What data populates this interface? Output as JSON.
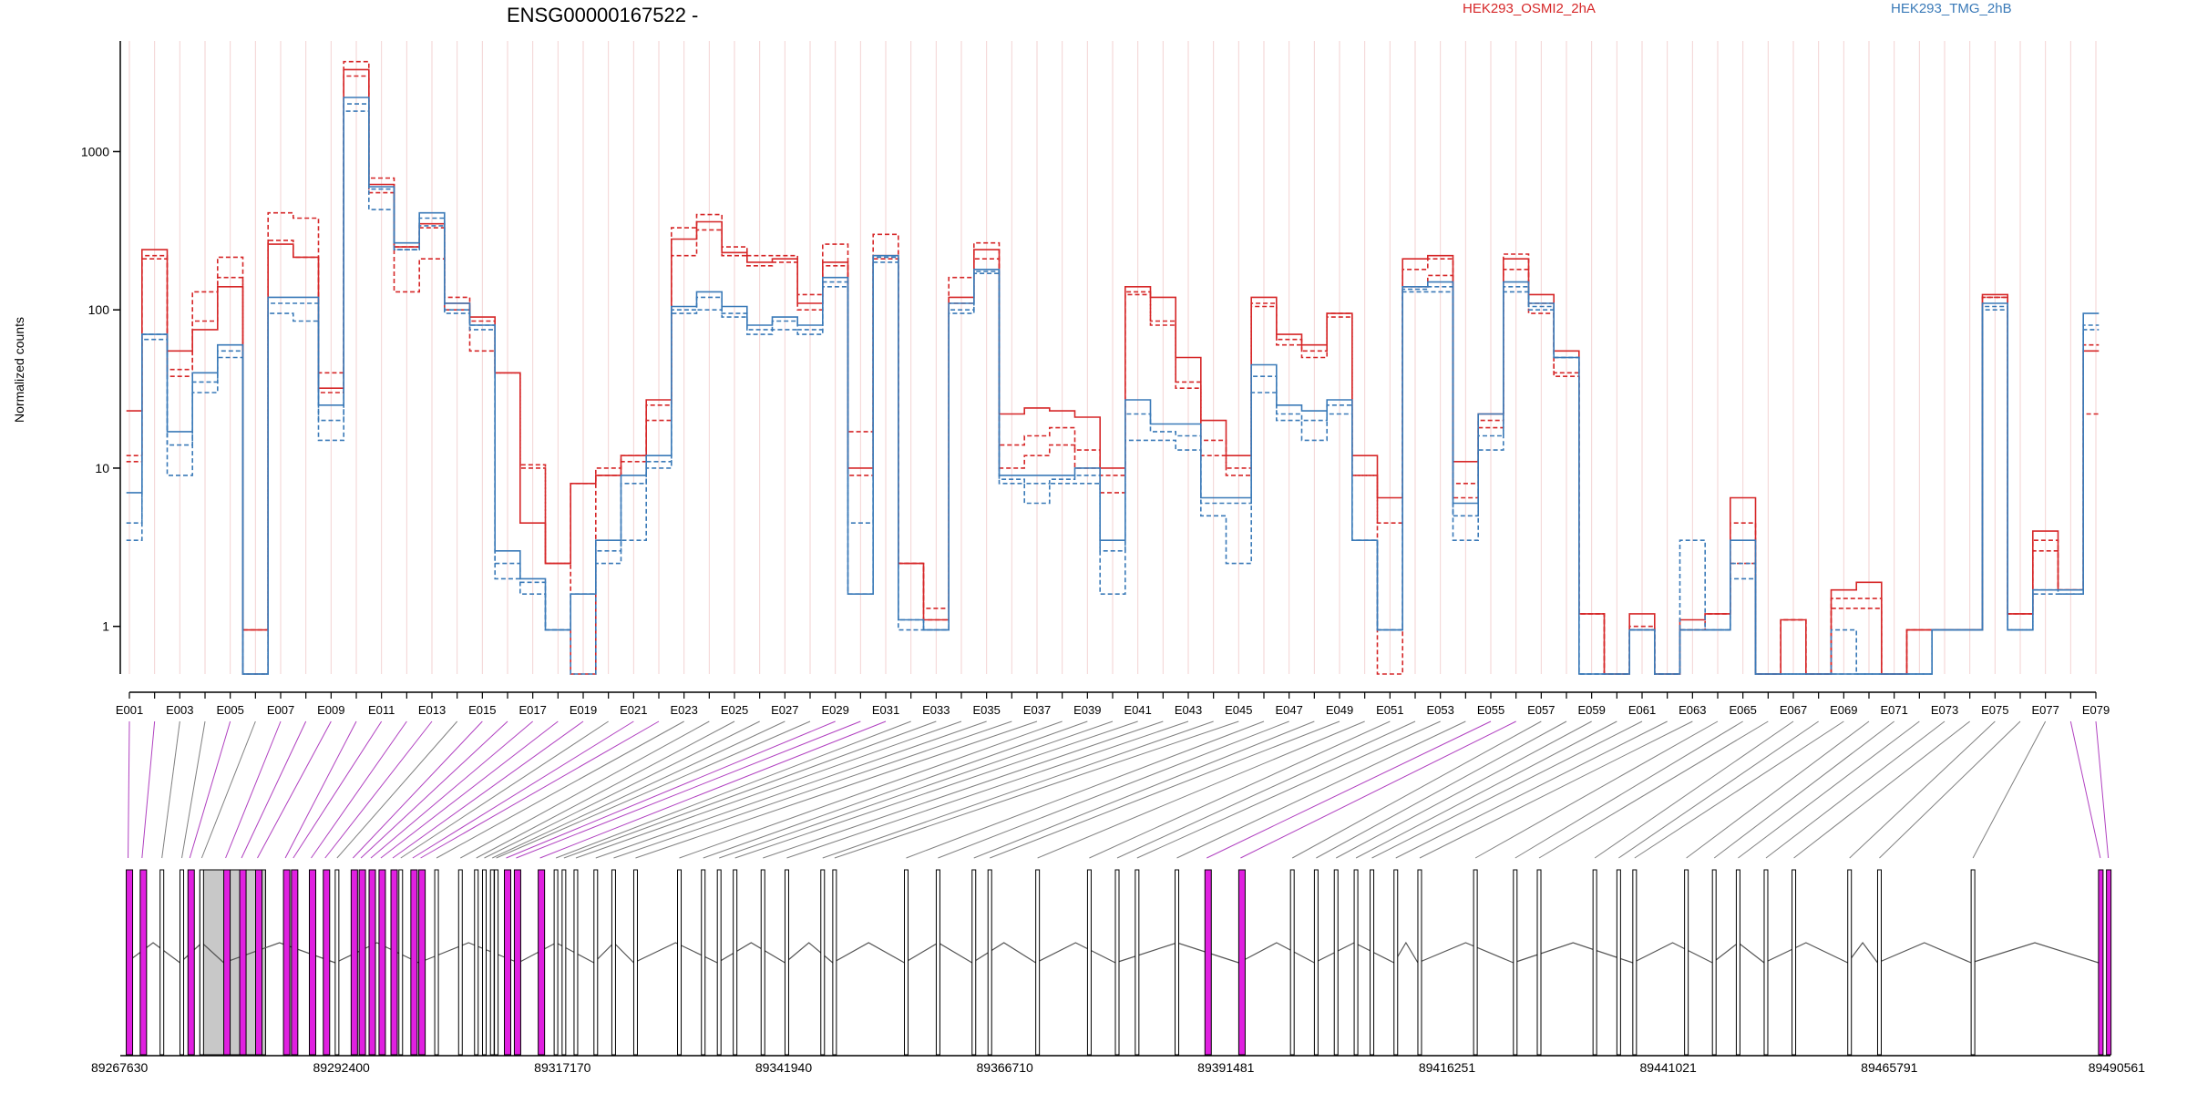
{
  "chart_data": {
    "type": "line",
    "title": "ENSG00000167522 -",
    "ylabel": "Normalized counts",
    "xlabel": "",
    "y_scale": "log",
    "ylim": [
      0.5,
      5000
    ],
    "y_ticks": [
      1,
      10,
      100,
      1000
    ],
    "y_tick_labels": [
      "1",
      "10",
      "100",
      "1000"
    ],
    "categories": [
      "E001",
      "E002",
      "E003",
      "E004",
      "E005",
      "E006",
      "E007",
      "E008",
      "E009",
      "E010",
      "E011",
      "E012",
      "E013",
      "E014",
      "E015",
      "E016",
      "E017",
      "E018",
      "E019",
      "E020",
      "E021",
      "E022",
      "E023",
      "E024",
      "E025",
      "E026",
      "E027",
      "E028",
      "E029",
      "E030",
      "E031",
      "E032",
      "E033",
      "E034",
      "E035",
      "E036",
      "E037",
      "E038",
      "E039",
      "E040",
      "E041",
      "E042",
      "E043",
      "E044",
      "E045",
      "E046",
      "E047",
      "E048",
      "E049",
      "E050",
      "E051",
      "E052",
      "E053",
      "E054",
      "E055",
      "E056",
      "E057",
      "E058",
      "E059",
      "E060",
      "E061",
      "E062",
      "E063",
      "E064",
      "E065",
      "E066",
      "E067",
      "E068",
      "E069",
      "E070",
      "E071",
      "E072",
      "E073",
      "E074",
      "E075",
      "E076",
      "E077",
      "E078",
      "E079"
    ],
    "category_labels": [
      "E001",
      "E003",
      "E005",
      "E007",
      "E009",
      "E011",
      "E013",
      "E015",
      "E017",
      "E019",
      "E021",
      "E023",
      "E025",
      "E027",
      "E029",
      "E031",
      "E033",
      "E035",
      "E037",
      "E039",
      "E041",
      "E043",
      "E045",
      "E047",
      "E049",
      "E051",
      "E053",
      "E055",
      "E057",
      "E059",
      "E061",
      "E063",
      "E065",
      "E067",
      "E069",
      "E071",
      "E073",
      "E075",
      "E077",
      "E079"
    ],
    "legend": [
      {
        "name": "HEK293_OSMI2_2hA",
        "color": "#d62728"
      },
      {
        "name": "HEK293_TMG_2hB",
        "color": "#3a7ab8"
      }
    ],
    "series": [
      {
        "group": "HEK293_OSMI2_2hA",
        "color": "#d62728",
        "dash": "solid",
        "values": [
          23,
          240,
          55,
          75,
          140,
          0.95,
          260,
          215,
          32,
          3300,
          620,
          250,
          350,
          110,
          90,
          40,
          4.5,
          2.5,
          8,
          9,
          12,
          27,
          280,
          360,
          230,
          200,
          210,
          110,
          200,
          10,
          220,
          2.5,
          1.1,
          120,
          240,
          22,
          24,
          23,
          21,
          10,
          140,
          120,
          50,
          20,
          12,
          120,
          70,
          60,
          95,
          12,
          6.5,
          210,
          220,
          11,
          22,
          210,
          125,
          55,
          1.2,
          0.5,
          1.2,
          0.5,
          1.1,
          1.2,
          6.5,
          0.5,
          1.1,
          0.5,
          1.7,
          1.9,
          0.5,
          0.95,
          0.95,
          0.95,
          125,
          1.2,
          4,
          1.7,
          55
        ]
      },
      {
        "group": "HEK293_OSMI2_2hA",
        "color": "#d62728",
        "dash": "dashed",
        "values": [
          12,
          220,
          38,
          85,
          215,
          0.5,
          410,
          380,
          40,
          3700,
          680,
          130,
          210,
          120,
          55,
          40,
          10.5,
          2.5,
          8,
          10,
          12,
          25,
          330,
          400,
          250,
          220,
          220,
          125,
          260,
          17,
          300,
          2.5,
          1.3,
          160,
          265,
          14,
          16,
          18,
          13,
          7,
          125,
          80,
          32,
          12,
          9,
          110,
          65,
          55,
          95,
          9,
          4.5,
          180,
          210,
          8,
          20,
          225,
          110,
          40,
          1.2,
          0.5,
          1,
          0.5,
          0.95,
          1.2,
          4.5,
          0.5,
          1.1,
          0.5,
          1.3,
          1.3,
          0.5,
          0.95,
          0.95,
          0.95,
          120,
          1.2,
          3.5,
          1.7,
          60
        ]
      },
      {
        "group": "HEK293_OSMI2_2hA",
        "color": "#d62728",
        "dash": "dashed",
        "values": [
          11,
          210,
          42,
          130,
          160,
          0.95,
          275,
          215,
          30,
          3000,
          550,
          250,
          330,
          100,
          85,
          40,
          10,
          2.5,
          0.5,
          9,
          11,
          20,
          220,
          320,
          220,
          190,
          200,
          100,
          190,
          9,
          210,
          2.5,
          1.1,
          110,
          210,
          10,
          12,
          14,
          10,
          9,
          130,
          85,
          35,
          15,
          10,
          105,
          60,
          50,
          90,
          9,
          0.5,
          140,
          165,
          6.5,
          18,
          180,
          95,
          38,
          1.2,
          0.5,
          0.95,
          0.5,
          0.95,
          1.2,
          2.5,
          0.5,
          1.1,
          0.5,
          1.5,
          1.5,
          0.5,
          0.95,
          0.95,
          0.95,
          120,
          1.2,
          3,
          1.7,
          22
        ]
      },
      {
        "group": "HEK293_TMG_2hB",
        "color": "#3a7ab8",
        "dash": "solid",
        "values": [
          7,
          70,
          17,
          40,
          60,
          0.5,
          120,
          120,
          25,
          2200,
          600,
          265,
          410,
          110,
          80,
          3,
          2,
          0.95,
          1.6,
          3.5,
          9,
          12,
          105,
          130,
          105,
          80,
          90,
          80,
          160,
          1.6,
          220,
          1.1,
          0.95,
          110,
          180,
          9,
          9,
          9,
          10,
          3.5,
          27,
          19,
          19,
          6.5,
          6.5,
          45,
          25,
          23,
          27,
          3.5,
          0.95,
          140,
          150,
          6,
          22,
          150,
          110,
          50,
          0.5,
          0.5,
          0.95,
          0.5,
          0.95,
          0.95,
          3.5,
          0.5,
          0.5,
          0.5,
          0.5,
          0.5,
          0.5,
          0.5,
          0.95,
          0.95,
          110,
          0.95,
          1.7,
          1.7,
          95
        ]
      },
      {
        "group": "HEK293_TMG_2hB",
        "color": "#3a7ab8",
        "dash": "dashed",
        "values": [
          3.5,
          65,
          9,
          35,
          50,
          0.5,
          95,
          85,
          15,
          1800,
          430,
          240,
          340,
          100,
          80,
          2,
          1.6,
          0.95,
          0.5,
          2.5,
          3.5,
          10,
          95,
          100,
          90,
          70,
          75,
          70,
          140,
          1.6,
          200,
          0.95,
          0.95,
          100,
          170,
          8,
          6,
          8,
          8,
          1.6,
          15,
          15,
          13,
          5,
          2.5,
          30,
          20,
          15,
          22,
          3.5,
          0.95,
          130,
          130,
          3.5,
          13,
          130,
          100,
          50,
          0.5,
          0.5,
          0.95,
          0.5,
          3.5,
          0.95,
          2,
          0.5,
          0.5,
          0.5,
          0.95,
          0.5,
          0.5,
          0.5,
          0.95,
          0.95,
          105,
          0.95,
          1.6,
          1.6,
          75
        ]
      },
      {
        "group": "HEK293_TMG_2hB",
        "color": "#3a7ab8",
        "dash": "dashed",
        "values": [
          4.5,
          70,
          14,
          30,
          55,
          0.5,
          110,
          110,
          20,
          2000,
          580,
          240,
          380,
          95,
          75,
          2.5,
          1.9,
          0.95,
          1.6,
          3,
          8,
          11,
          100,
          120,
          95,
          75,
          85,
          75,
          150,
          4.5,
          215,
          1.1,
          0.95,
          95,
          175,
          8.5,
          8,
          8.5,
          9,
          3,
          22,
          17,
          16,
          6,
          6,
          38,
          22,
          20,
          25,
          3.5,
          0.95,
          135,
          140,
          5,
          16,
          140,
          105,
          50,
          0.5,
          0.5,
          0.95,
          0.5,
          0.95,
          0.95,
          2.5,
          0.5,
          0.5,
          0.5,
          0.5,
          0.5,
          0.5,
          0.5,
          0.95,
          0.95,
          100,
          0.95,
          1.7,
          1.6,
          80
        ]
      }
    ]
  },
  "gene_model": {
    "coordinate_labels": [
      "89267630",
      "89292400",
      "89317170",
      "89341940",
      "89366710",
      "89391481",
      "89416251",
      "89441021",
      "89465791",
      "89490561"
    ],
    "coord_min": 89267630,
    "coord_max": 89490561,
    "exon_fill_default": "#ffffff",
    "exon_fill_highlight": "#e020e0",
    "exon_fill_grey": "#c8c8c8",
    "connector_color_highlight": "#b040c0",
    "connector_color_default": "#808080"
  }
}
